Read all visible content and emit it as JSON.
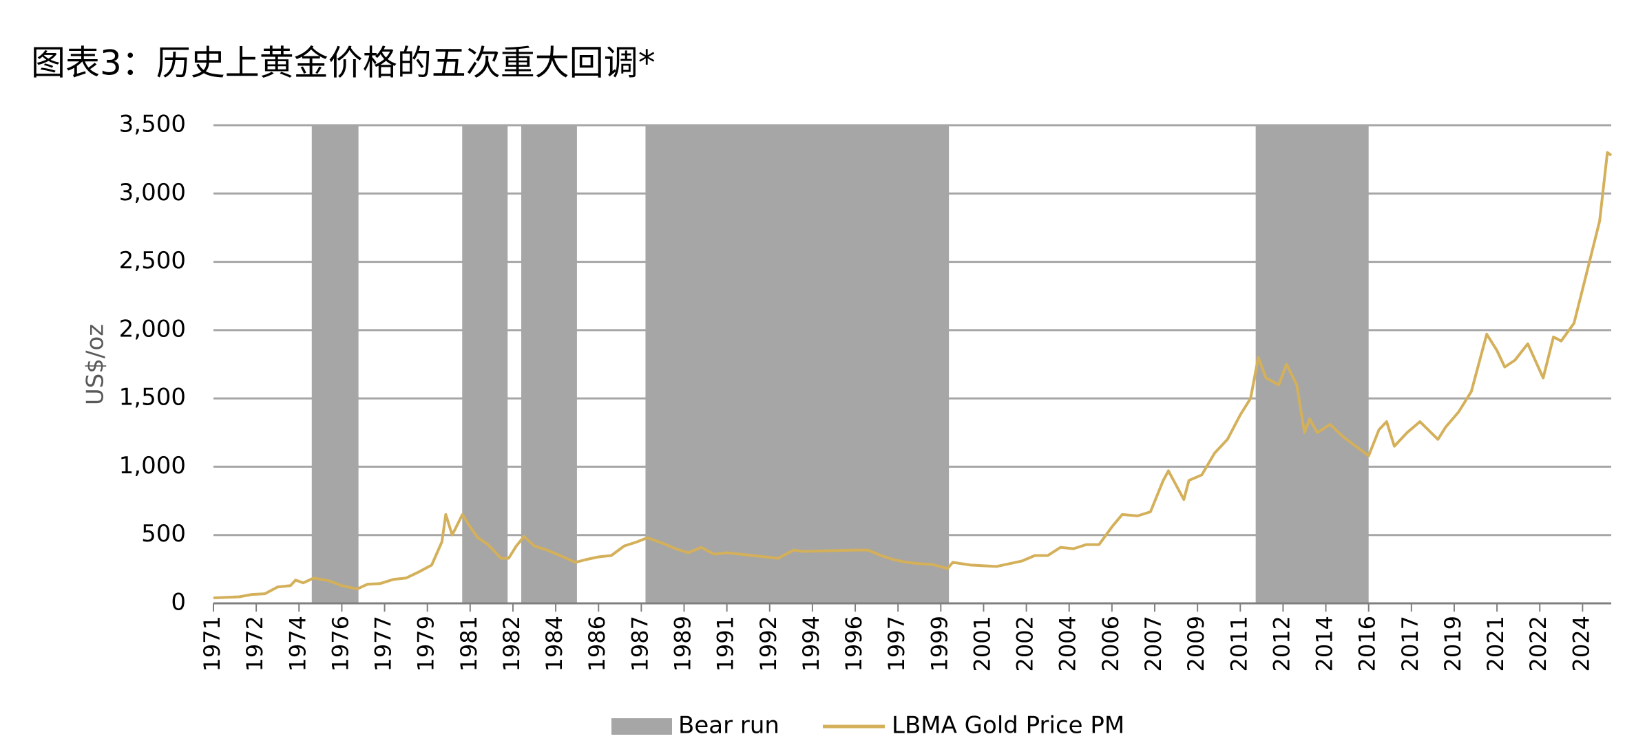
{
  "chart_data": {
    "type": "line",
    "title": "图表3：历史上黄金价格的五次重大回调*",
    "ylabel": "US$/oz",
    "xlim": [
      1971,
      2025.45
    ],
    "xticks": [
      {
        "value": 1971,
        "label": "1971"
      },
      {
        "value": 1972.667,
        "label": "1972"
      },
      {
        "value": 1974.333,
        "label": "1974"
      },
      {
        "value": 1976,
        "label": "1976"
      },
      {
        "value": 1977.667,
        "label": "1977"
      },
      {
        "value": 1979.333,
        "label": "1979"
      },
      {
        "value": 1981,
        "label": "1981"
      },
      {
        "value": 1982.667,
        "label": "1982"
      },
      {
        "value": 1984.333,
        "label": "1984"
      },
      {
        "value": 1986,
        "label": "1986"
      },
      {
        "value": 1987.667,
        "label": "1987"
      },
      {
        "value": 1989.333,
        "label": "1989"
      },
      {
        "value": 1991,
        "label": "1991"
      },
      {
        "value": 1992.667,
        "label": "1992"
      },
      {
        "value": 1994.333,
        "label": "1994"
      },
      {
        "value": 1996,
        "label": "1996"
      },
      {
        "value": 1997.667,
        "label": "1997"
      },
      {
        "value": 1999.333,
        "label": "1999"
      },
      {
        "value": 2001,
        "label": "2001"
      },
      {
        "value": 2002.667,
        "label": "2002"
      },
      {
        "value": 2004.333,
        "label": "2004"
      },
      {
        "value": 2006,
        "label": "2006"
      },
      {
        "value": 2007.667,
        "label": "2007"
      },
      {
        "value": 2009.333,
        "label": "2009"
      },
      {
        "value": 2011,
        "label": "2011"
      },
      {
        "value": 2012.667,
        "label": "2012"
      },
      {
        "value": 2014.333,
        "label": "2014"
      },
      {
        "value": 2016,
        "label": "2016"
      },
      {
        "value": 2017.667,
        "label": "2017"
      },
      {
        "value": 2019.333,
        "label": "2019"
      },
      {
        "value": 2021,
        "label": "2021"
      },
      {
        "value": 2022.667,
        "label": "2022"
      },
      {
        "value": 2024.333,
        "label": "2024"
      }
    ],
    "ylim": [
      0,
      3500
    ],
    "yticks": [
      0,
      500,
      {
        "value": 1000,
        "label": "1,000"
      },
      {
        "value": 1500,
        "label": "1,500"
      },
      {
        "value": 2000,
        "label": "2,000"
      },
      {
        "value": 2500,
        "label": "2,500"
      },
      {
        "value": 3000,
        "label": "3,000"
      },
      {
        "value": 3500,
        "label": "3,500"
      }
    ],
    "grid": true,
    "bear_runs": {
      "name": "Bear run",
      "color": "#a6a6a6",
      "ranges": [
        [
          1974.83,
          1976.65
        ],
        [
          1980.69,
          1982.46
        ],
        [
          1982.99,
          1985.16
        ],
        [
          1987.83,
          1999.65
        ],
        [
          2011.6,
          2016.0
        ]
      ]
    },
    "series": [
      {
        "name": "LBMA Gold Price PM",
        "color": "#d4b05a",
        "x": [
          1971,
          1972,
          1972.5,
          1973,
          1973.5,
          1974,
          1974.2,
          1974.5,
          1974.9,
          1975.5,
          1976,
          1976.6,
          1977,
          1977.5,
          1978,
          1978.5,
          1979,
          1979.5,
          1979.9,
          1980.05,
          1980.3,
          1980.7,
          1981,
          1981.3,
          1981.7,
          1982.2,
          1982.5,
          1982.8,
          1983.1,
          1983.5,
          1984,
          1984.5,
          1985.1,
          1985.5,
          1986,
          1986.5,
          1987,
          1987.5,
          1987.9,
          1988.5,
          1989,
          1989.5,
          1990,
          1990.5,
          1991,
          1991.5,
          1992,
          1992.5,
          1993,
          1993.6,
          1994,
          1995,
          1996,
          1996.5,
          1997,
          1997.5,
          1998,
          1998.5,
          1999,
          1999.6,
          1999.8,
          2000.5,
          2001.5,
          2002,
          2002.5,
          2003,
          2003.5,
          2004,
          2004.5,
          2005,
          2005.5,
          2006,
          2006.4,
          2007,
          2007.5,
          2008,
          2008.2,
          2008.8,
          2009,
          2009.5,
          2010,
          2010.5,
          2011,
          2011.4,
          2011.7,
          2012,
          2012.5,
          2012.8,
          2013.2,
          2013.5,
          2013.7,
          2014,
          2014.5,
          2015,
          2015.5,
          2016,
          2016.4,
          2016.7,
          2017,
          2017.5,
          2018,
          2018.7,
          2019,
          2019.5,
          2020,
          2020.6,
          2021,
          2021.3,
          2021.7,
          2022.2,
          2022.8,
          2023.2,
          2023.5,
          2024,
          2024.4,
          2024.8,
          2025,
          2025.3,
          2025.45
        ],
        "values": [
          40,
          48,
          65,
          70,
          120,
          130,
          170,
          150,
          185,
          165,
          130,
          105,
          140,
          145,
          175,
          185,
          230,
          280,
          450,
          650,
          500,
          650,
          560,
          480,
          430,
          330,
          330,
          420,
          490,
          420,
          390,
          350,
          300,
          320,
          340,
          350,
          420,
          450,
          480,
          440,
          400,
          370,
          410,
          360,
          370,
          360,
          350,
          340,
          330,
          390,
          380,
          385,
          390,
          390,
          350,
          320,
          300,
          290,
          285,
          255,
          300,
          280,
          270,
          290,
          310,
          350,
          350,
          410,
          400,
          430,
          430,
          560,
          650,
          640,
          670,
          900,
          970,
          760,
          900,
          940,
          1100,
          1200,
          1380,
          1500,
          1800,
          1650,
          1600,
          1750,
          1600,
          1250,
          1350,
          1250,
          1310,
          1220,
          1150,
          1080,
          1270,
          1330,
          1150,
          1250,
          1330,
          1200,
          1290,
          1400,
          1550,
          1970,
          1850,
          1730,
          1780,
          1900,
          1650,
          1950,
          1920,
          2050,
          2350,
          2650,
          2800,
          3300,
          3280
        ]
      }
    ]
  }
}
